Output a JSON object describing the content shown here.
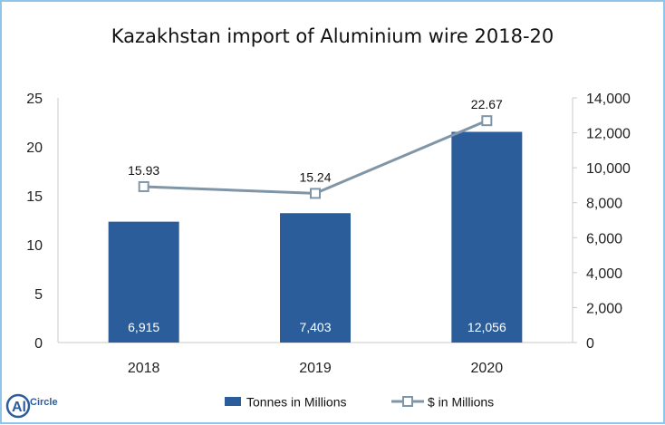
{
  "chart_data": {
    "type": "bar",
    "title": "Kazakhstan import of Aluminium wire 2018-20",
    "categories": [
      "2018",
      "2019",
      "2020"
    ],
    "series": [
      {
        "name": "Tonnes in Millions",
        "type": "bar",
        "axis": "right",
        "values": [
          6915,
          7403,
          12056
        ],
        "labels": [
          "6,915",
          "7,403",
          "12,056"
        ]
      },
      {
        "name": "$ in Millions",
        "type": "line",
        "axis": "left",
        "values": [
          15.93,
          15.24,
          22.67
        ],
        "labels": [
          "15.93",
          "15.24",
          "22.67"
        ]
      }
    ],
    "y_left": {
      "ylim": [
        0,
        25
      ],
      "ticks": [
        "0",
        "5",
        "10",
        "15",
        "20",
        "25"
      ]
    },
    "y_right": {
      "ylim": [
        0,
        14000
      ],
      "ticks": [
        "0",
        "2,000",
        "4,000",
        "6,000",
        "8,000",
        "10,000",
        "12,000",
        "14,000"
      ]
    },
    "legend_position": "bottom",
    "grid": false
  },
  "colors": {
    "bar": "#2b5d9b",
    "line": "#7f96a8",
    "marker_fill": "#ffffff",
    "axis": "#c8c8c8",
    "border": "#8ec5e8"
  },
  "logo": {
    "text_al": "Al",
    "text_circle": "Circle"
  },
  "icons": {
    "logo": "alcircle-logo-icon"
  }
}
